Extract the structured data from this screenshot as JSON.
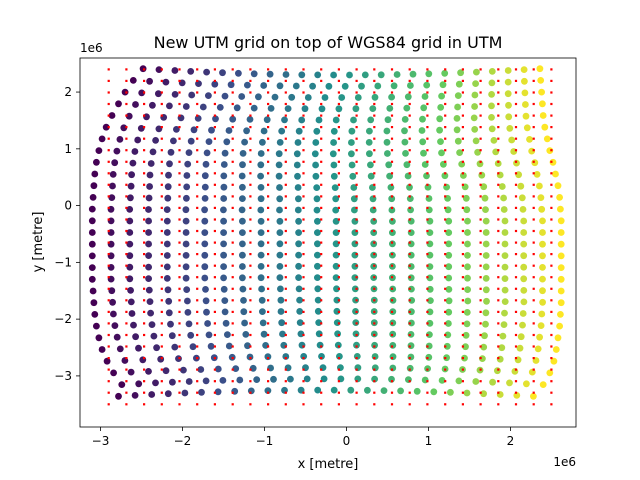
{
  "chart_data": {
    "type": "scatter",
    "title": "New UTM grid on top of WGS84 grid in UTM",
    "xlabel": "x [metre]",
    "ylabel": "y [metre]",
    "x_offset_text": "1e6",
    "y_offset_text": "1e6",
    "xlim": [
      -3.25,
      2.8
    ],
    "ylim": [
      -3.9,
      2.6
    ],
    "x_ticks": [
      -3,
      -2,
      -1,
      0,
      1,
      2
    ],
    "x_tick_labels": [
      "−3",
      "−2",
      "−1",
      "0",
      "1",
      "2"
    ],
    "y_ticks": [
      -3,
      -2,
      -1,
      0,
      1,
      2
    ],
    "y_tick_labels": [
      "−3",
      "−2",
      "−1",
      "0",
      "1",
      "2"
    ],
    "grid": false,
    "units_note": "values in units of 1e6 metres",
    "series": [
      {
        "marker_color": "#ff0000",
        "marker": "small square dot",
        "x_range": [
          -2.9,
          2.5
        ],
        "x_count": 26,
        "y_range": [
          -3.5,
          2.4
        ],
        "y_count": 30
      },
      {
        "marker": "circle",
        "colormap": "viridis",
        "color_by": "column",
        "columns": 26,
        "rows": 29,
        "row_y_range": [
          -3.25,
          2.3
        ],
        "colormap_stops": [
          "#440154",
          "#3b528b",
          "#21918c",
          "#5ec962",
          "#fde725"
        ],
        "left_edge_x": [
          -2.78,
          -2.74,
          -2.84,
          -2.92,
          -2.98,
          -3.02,
          -3.05,
          -3.07,
          -3.08,
          -3.09,
          -3.1,
          -3.1,
          -3.1,
          -3.1,
          -3.1,
          -3.1,
          -3.1,
          -3.09,
          -3.08,
          -3.07,
          -3.05,
          -3.02,
          -2.98,
          -2.93,
          -2.86,
          -2.78,
          -2.7,
          -2.6,
          -2.48
        ],
        "right_edge_x": [
          2.28,
          2.4,
          2.48,
          2.53,
          2.56,
          2.58,
          2.6,
          2.61,
          2.62,
          2.62,
          2.62,
          2.62,
          2.62,
          2.62,
          2.62,
          2.62,
          2.61,
          2.6,
          2.58,
          2.55,
          2.52,
          2.48,
          2.45,
          2.42,
          2.4,
          2.39,
          2.38,
          2.37,
          2.36
        ]
      }
    ]
  }
}
